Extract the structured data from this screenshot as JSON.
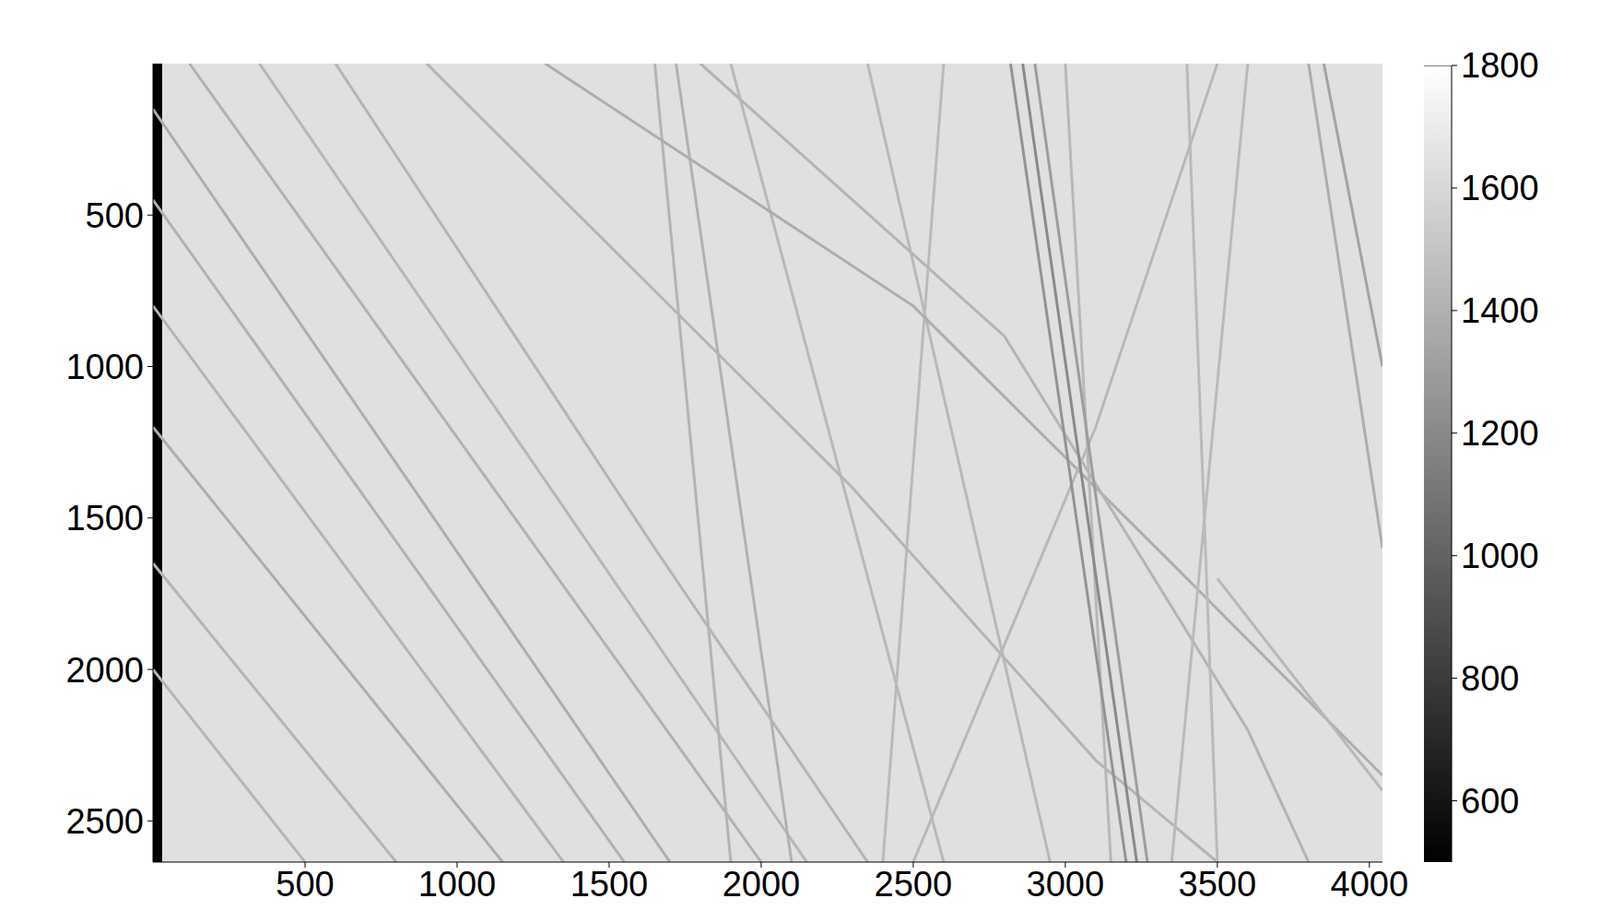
{
  "chart_data": {
    "type": "image",
    "color": "gray",
    "xlim": [
      0,
      4043
    ],
    "ylim": [
      2636,
      0
    ],
    "xticks": [
      500,
      1000,
      1500,
      2000,
      2500,
      3000,
      3500,
      4000
    ],
    "yticks": [
      500,
      1000,
      1500,
      2000,
      2500
    ],
    "background": 1640,
    "regions": [
      {
        "x": [
          0,
          30
        ],
        "value": 500
      }
    ],
    "colorbar": {
      "lim": [
        500,
        1800
      ],
      "ticks": [
        600,
        800,
        1000,
        1200,
        1400,
        1600,
        1800
      ]
    },
    "streaks": [
      {
        "x": [
          0,
          1700
        ],
        "y": [
          150,
          2636
        ],
        "value": 1380
      },
      {
        "x": [
          0,
          1550
        ],
        "y": [
          450,
          2636
        ],
        "value": 1400
      },
      {
        "x": [
          0,
          1350
        ],
        "y": [
          800,
          2636
        ],
        "value": 1420
      },
      {
        "x": [
          0,
          1150
        ],
        "y": [
          1200,
          2636
        ],
        "value": 1380
      },
      {
        "x": [
          0,
          800
        ],
        "y": [
          1650,
          2636
        ],
        "value": 1420
      },
      {
        "x": [
          0,
          500
        ],
        "y": [
          2000,
          2636
        ],
        "value": 1430
      },
      {
        "x": [
          120,
          2000
        ],
        "y": [
          0,
          2636
        ],
        "value": 1400
      },
      {
        "x": [
          350,
          2150
        ],
        "y": [
          0,
          2636
        ],
        "value": 1430
      },
      {
        "x": [
          600,
          1650,
          2350
        ],
        "y": [
          0,
          1600,
          2636
        ],
        "value": 1420
      },
      {
        "x": [
          1650,
          1900
        ],
        "y": [
          0,
          2636
        ],
        "value": 1420
      },
      {
        "x": [
          1720,
          2100
        ],
        "y": [
          0,
          2636
        ],
        "value": 1400
      },
      {
        "x": [
          1900,
          2600
        ],
        "y": [
          0,
          2636
        ],
        "value": 1440
      },
      {
        "x": [
          2350,
          2950
        ],
        "y": [
          0,
          2636
        ],
        "value": 1440
      },
      {
        "x": [
          2600,
          2400
        ],
        "y": [
          0,
          2636
        ],
        "value": 1450
      },
      {
        "x": [
          1290,
          2500,
          3400,
          4043
        ],
        "y": [
          0,
          800,
          1700,
          2350
        ],
        "value": 1380
      },
      {
        "x": [
          1800,
          2800,
          3600,
          3800
        ],
        "y": [
          0,
          900,
          2200,
          2636
        ],
        "value": 1420
      },
      {
        "x": [
          900,
          2300,
          3100,
          3500
        ],
        "y": [
          0,
          1400,
          2300,
          2636
        ],
        "value": 1420
      },
      {
        "x": [
          3000,
          3150
        ],
        "y": [
          0,
          2636
        ],
        "value": 1440
      },
      {
        "x": [
          3400,
          3500
        ],
        "y": [
          0,
          2636
        ],
        "value": 1450
      },
      {
        "x": [
          3600,
          3350
        ],
        "y": [
          0,
          2636
        ],
        "value": 1450
      },
      {
        "x": [
          2500,
          3100,
          3500
        ],
        "y": [
          2636,
          1200,
          0
        ],
        "value": 1440
      },
      {
        "x": [
          2820,
          3200
        ],
        "y": [
          0,
          2636
        ],
        "value": 1250
      },
      {
        "x": [
          2860,
          3235
        ],
        "y": [
          0,
          2636
        ],
        "value": 1200
      },
      {
        "x": [
          2900,
          3270
        ],
        "y": [
          0,
          2636
        ],
        "value": 1300
      },
      {
        "x": [
          3800,
          4043
        ],
        "y": [
          0,
          1600
        ],
        "value": 1380
      },
      {
        "x": [
          3850,
          4043
        ],
        "y": [
          0,
          1000
        ],
        "value": 1330
      },
      {
        "x": [
          3500,
          4043
        ],
        "y": [
          1700,
          2400
        ],
        "value": 1440
      }
    ]
  }
}
